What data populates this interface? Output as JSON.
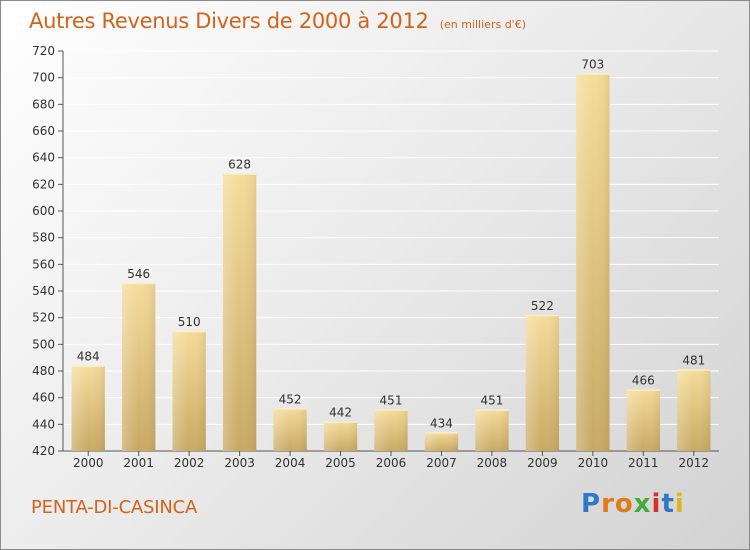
{
  "header": {
    "title": "Autres Revenus Divers de 2000 à 2012",
    "unit": "(en milliers d'€)"
  },
  "footer": {
    "location": "PENTA-DI-CASINCA",
    "logo_letters": [
      "P",
      "r",
      "o",
      "x",
      "i",
      "t",
      "i"
    ],
    "logo_colors": [
      "#2f77c8",
      "#e07a1a",
      "#e07a1a",
      "#49a83a",
      "#d4302c",
      "#2f77c8",
      "#e0b51a"
    ]
  },
  "colors": {
    "title": "#d0641a",
    "bar_light": "#f5dc9a",
    "bar_dark": "#c8a862",
    "grid": "#ffffff"
  },
  "chart_data": {
    "type": "bar",
    "title": "Autres Revenus Divers de 2000 à 2012",
    "subtitle": "(en milliers d'€)",
    "categories": [
      "2000",
      "2001",
      "2002",
      "2003",
      "2004",
      "2005",
      "2006",
      "2007",
      "2008",
      "2009",
      "2010",
      "2011",
      "2012"
    ],
    "values": [
      484,
      546,
      510,
      628,
      452,
      442,
      451,
      434,
      451,
      522,
      703,
      466,
      481
    ],
    "ylim": [
      420,
      720
    ],
    "yticks": [
      420,
      440,
      460,
      480,
      500,
      520,
      540,
      560,
      580,
      600,
      620,
      640,
      660,
      680,
      700,
      720
    ],
    "grid": true,
    "data_labels": true
  }
}
